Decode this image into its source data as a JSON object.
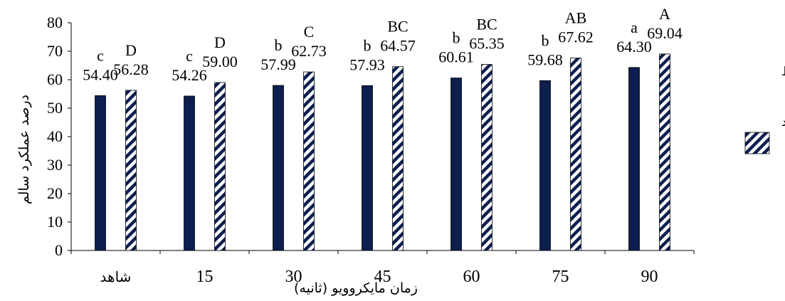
{
  "chart_data": {
    "type": "bar",
    "title": "",
    "xlabel": "زمان مایکروویو (ثانیه)",
    "ylabel": "درصد عملکرد سالم",
    "ylim": [
      0,
      80
    ],
    "yticks": [
      0,
      10,
      20,
      30,
      40,
      50,
      60,
      70,
      80
    ],
    "categories": [
      "شاهد",
      "15",
      "30",
      "45",
      "60",
      "75",
      "90"
    ],
    "grid": false,
    "legend_position": "right",
    "series": [
      {
        "name": "دانه متوسط",
        "color": "#0d1f4f",
        "pattern": "solid",
        "values": [
          54.4,
          54.26,
          57.99,
          57.93,
          60.61,
          59.68,
          64.3
        ],
        "value_labels": [
          "54.40",
          "54.26",
          "57.99",
          "57.93",
          "60.61",
          "59.68",
          "64.30"
        ],
        "letters": [
          "c",
          "c",
          "b",
          "b",
          "b",
          "b",
          "a"
        ]
      },
      {
        "name": "دانه بلند",
        "color": "#0d1f4f",
        "pattern": "diagonal-stripes",
        "values": [
          56.28,
          59.0,
          62.73,
          64.57,
          65.35,
          67.62,
          69.04
        ],
        "value_labels": [
          "56.28",
          "59.00",
          "62.73",
          "64.57",
          "65.35",
          "67.62",
          "69.04"
        ],
        "letters": [
          "D",
          "D",
          "C",
          "BC",
          "BC",
          "AB",
          "A"
        ]
      }
    ]
  }
}
